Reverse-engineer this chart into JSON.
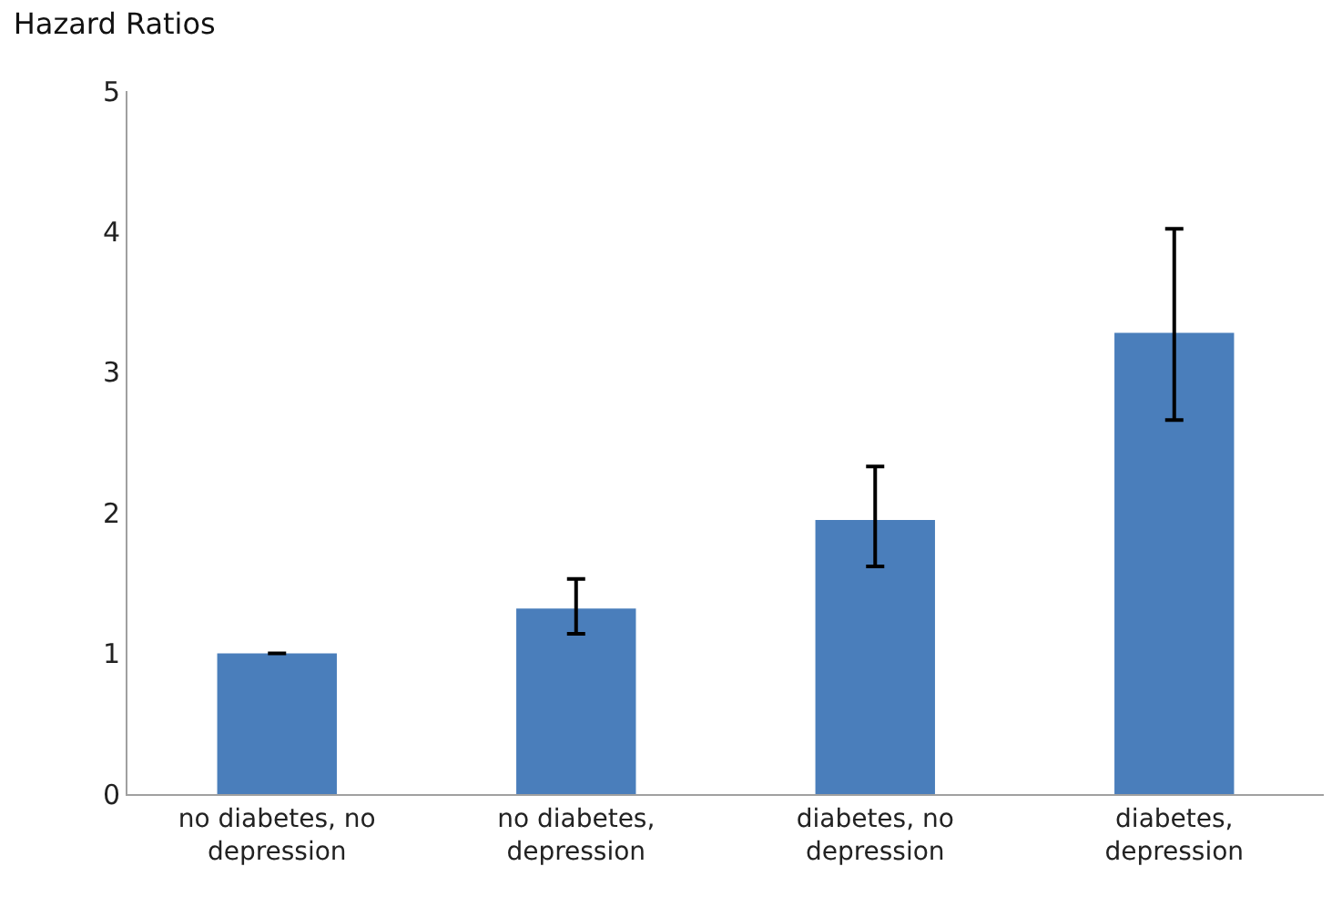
{
  "chart_data": {
    "type": "bar",
    "title": "Hazard Ratios",
    "categories": [
      "no diabetes, no depression",
      "no diabetes, depression",
      "diabetes, no depression",
      "diabetes, depression"
    ],
    "values": [
      1.0,
      1.32,
      1.95,
      3.28
    ],
    "errors": [
      null,
      [
        1.14,
        1.53
      ],
      [
        1.62,
        2.33
      ],
      [
        2.66,
        4.02
      ]
    ],
    "color": "#4a7ebb",
    "ylim": [
      0,
      5
    ],
    "yticks": [
      0,
      1,
      2,
      3,
      4,
      5
    ]
  }
}
